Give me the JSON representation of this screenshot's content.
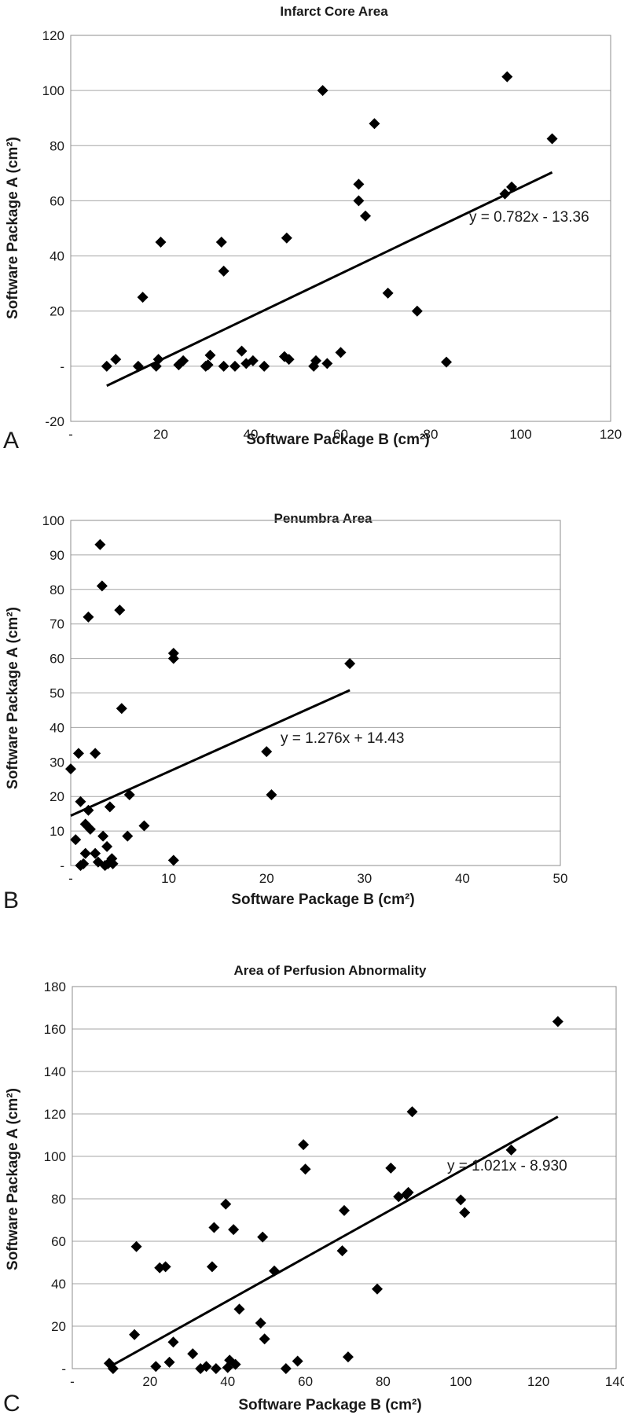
{
  "chart_data": [
    {
      "type": "scatter",
      "panel": "A",
      "title": "Infarct Core Area",
      "xlabel": "Software Package B (cm²)",
      "ylabel": "Software Package A (cm²)",
      "xlim": [
        0,
        120
      ],
      "ylim": [
        -20,
        120
      ],
      "x_ticks": [
        0,
        20,
        40,
        60,
        80,
        100,
        120
      ],
      "x_tick_labels": [
        "-",
        "20",
        "40",
        "60",
        "80",
        "100",
        "120"
      ],
      "y_ticks": [
        -20,
        0,
        20,
        40,
        60,
        80,
        100,
        120
      ],
      "y_tick_labels": [
        "-20",
        "-",
        "20",
        "40",
        "60",
        "80",
        "100",
        "120"
      ],
      "grid": true,
      "trendline": {
        "equation": "y = 0.782x - 13.36",
        "x_range": [
          8,
          107
        ],
        "slope": 0.782,
        "intercept": -13.36
      },
      "points": [
        [
          8,
          0
        ],
        [
          10,
          2.5
        ],
        [
          15,
          0
        ],
        [
          16,
          25
        ],
        [
          19,
          0
        ],
        [
          19.5,
          2.5
        ],
        [
          20,
          45
        ],
        [
          24,
          0.5
        ],
        [
          25,
          2
        ],
        [
          30,
          0
        ],
        [
          30.5,
          0.5
        ],
        [
          31,
          4
        ],
        [
          33.5,
          45
        ],
        [
          34,
          34.5
        ],
        [
          34,
          0
        ],
        [
          36.5,
          0
        ],
        [
          38,
          5.5
        ],
        [
          39,
          1
        ],
        [
          40.5,
          2
        ],
        [
          43,
          0
        ],
        [
          47.5,
          3.5
        ],
        [
          48,
          46.5
        ],
        [
          48.5,
          2.5
        ],
        [
          54,
          0
        ],
        [
          54.5,
          2
        ],
        [
          56,
          100
        ],
        [
          57,
          1
        ],
        [
          60,
          5
        ],
        [
          64,
          66
        ],
        [
          64,
          60
        ],
        [
          65.5,
          54.5
        ],
        [
          67.5,
          88
        ],
        [
          70.5,
          26.5
        ],
        [
          77,
          20
        ],
        [
          83.5,
          1.5
        ],
        [
          96.5,
          62.5
        ],
        [
          97,
          105
        ],
        [
          98,
          65
        ],
        [
          107,
          82.5
        ]
      ]
    },
    {
      "type": "scatter",
      "panel": "B",
      "title": "Penumbra Area",
      "xlabel": "Software Package B (cm²)",
      "ylabel": "Software Package A (cm²)",
      "xlim": [
        0,
        50
      ],
      "ylim": [
        0,
        100
      ],
      "x_ticks": [
        0,
        10,
        20,
        30,
        40,
        50
      ],
      "x_tick_labels": [
        "-",
        "10",
        "20",
        "30",
        "40",
        "50"
      ],
      "y_ticks": [
        0,
        10,
        20,
        30,
        40,
        50,
        60,
        70,
        80,
        90,
        100
      ],
      "y_tick_labels": [
        "-",
        "10",
        "20",
        "30",
        "40",
        "50",
        "60",
        "70",
        "80",
        "90",
        "100"
      ],
      "grid": true,
      "trendline": {
        "equation": "y = 1.276x + 14.43",
        "x_range": [
          0,
          28.5
        ],
        "slope": 1.276,
        "intercept": 14.43
      },
      "points": [
        [
          0,
          28
        ],
        [
          0.5,
          7.5
        ],
        [
          0.8,
          32.5
        ],
        [
          1,
          18.5
        ],
        [
          1,
          0
        ],
        [
          1.3,
          0.5
        ],
        [
          1.5,
          3.5
        ],
        [
          1.5,
          12
        ],
        [
          1.8,
          16
        ],
        [
          1.8,
          72
        ],
        [
          2,
          10.5
        ],
        [
          2.5,
          32.5
        ],
        [
          2.5,
          3.5
        ],
        [
          2.8,
          1
        ],
        [
          3,
          93
        ],
        [
          3.2,
          81
        ],
        [
          3.3,
          8.5
        ],
        [
          3.5,
          0
        ],
        [
          3.7,
          5.5
        ],
        [
          3.8,
          0.5
        ],
        [
          4,
          1
        ],
        [
          4,
          17
        ],
        [
          4.2,
          2
        ],
        [
          4.3,
          0.5
        ],
        [
          5,
          74
        ],
        [
          5.2,
          45.5
        ],
        [
          5.8,
          8.5
        ],
        [
          6,
          20.5
        ],
        [
          7.5,
          11.5
        ],
        [
          10.5,
          61.5
        ],
        [
          10.5,
          60
        ],
        [
          10.5,
          1.5
        ],
        [
          20,
          33
        ],
        [
          20.5,
          20.5
        ],
        [
          28.5,
          58.5
        ]
      ]
    },
    {
      "type": "scatter",
      "panel": "C",
      "title": "Area of Perfusion Abnormality",
      "xlabel": "Software Package B (cm²)",
      "ylabel": "Software Package A (cm²)",
      "xlim": [
        0,
        140
      ],
      "ylim": [
        0,
        180
      ],
      "x_ticks": [
        0,
        20,
        40,
        60,
        80,
        100,
        120,
        140
      ],
      "x_tick_labels": [
        "-",
        "20",
        "40",
        "60",
        "80",
        "100",
        "120",
        "140"
      ],
      "y_ticks": [
        0,
        20,
        40,
        60,
        80,
        100,
        120,
        140,
        160,
        180
      ],
      "y_tick_labels": [
        "-",
        "20",
        "40",
        "60",
        "80",
        "100",
        "120",
        "140",
        "160",
        "180"
      ],
      "grid": true,
      "trendline": {
        "equation": "y = 1.021x - 8.930",
        "x_range": [
          10,
          125
        ],
        "slope": 1.021,
        "intercept": -8.93
      },
      "points": [
        [
          9.5,
          2.5
        ],
        [
          10.5,
          0
        ],
        [
          16,
          16
        ],
        [
          16.5,
          57.5
        ],
        [
          21.5,
          1
        ],
        [
          22.5,
          47.5
        ],
        [
          24,
          48
        ],
        [
          25,
          3
        ],
        [
          26,
          12.5
        ],
        [
          31,
          7
        ],
        [
          33,
          0
        ],
        [
          34.5,
          1
        ],
        [
          36,
          48
        ],
        [
          36.5,
          66.5
        ],
        [
          37,
          0
        ],
        [
          39.5,
          77.5
        ],
        [
          40,
          0.5
        ],
        [
          40.5,
          4
        ],
        [
          41.5,
          65.5
        ],
        [
          42,
          2
        ],
        [
          43,
          28
        ],
        [
          48.5,
          21.5
        ],
        [
          49,
          62
        ],
        [
          49.5,
          14
        ],
        [
          52,
          46
        ],
        [
          55,
          0
        ],
        [
          58,
          3.5
        ],
        [
          59.5,
          105.5
        ],
        [
          60,
          94
        ],
        [
          69.5,
          55.5
        ],
        [
          70,
          74.5
        ],
        [
          71,
          5.5
        ],
        [
          78.5,
          37.5
        ],
        [
          82,
          94.5
        ],
        [
          84,
          81
        ],
        [
          86,
          82
        ],
        [
          86.5,
          83
        ],
        [
          87.5,
          121
        ],
        [
          100,
          79.5
        ],
        [
          101,
          73.5
        ],
        [
          113,
          103
        ],
        [
          125,
          163.5
        ]
      ]
    }
  ]
}
